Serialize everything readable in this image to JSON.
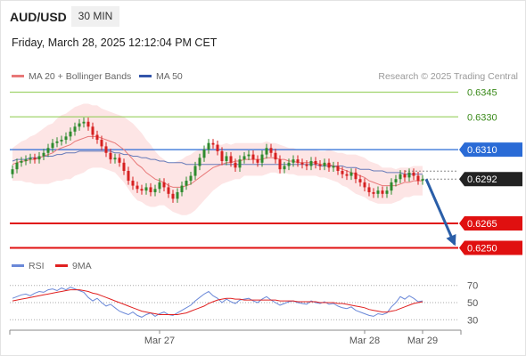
{
  "header": {
    "symbol": "AUD/USD",
    "timeframe": "30 MIN",
    "datetime": "Friday, March 28, 2025 12:12:04 PM CET"
  },
  "legend": {
    "ma20_label": "MA 20 + Bollinger Bands",
    "ma50_label": "MA 50",
    "credit": "Research © 2025 Trading Central",
    "rsi_label": "RSI",
    "rsi_ma_label": "9MA"
  },
  "colors": {
    "bullish": "#2e8b2e",
    "bearish": "#d62020",
    "ma20": "#e87878",
    "ma50": "#3355aa",
    "band": "#fde0e0",
    "resistance_green": "#8ac94a",
    "pivot_blue": "#2a6bd6",
    "support_red": "#e01010",
    "arrow": "#2a5ea8",
    "rsi": "#6a88d8",
    "rsi_ma": "#e02020"
  },
  "chart_data": [
    {
      "type": "candlestick",
      "title": "",
      "xlabel": "",
      "ylabel": "",
      "ylim": [
        0.62465,
        0.63535
      ],
      "x_ticks": [
        "Mar 27",
        "Mar 28",
        "Mar 29"
      ],
      "levels": [
        {
          "value": 0.6345,
          "label": "0.6345",
          "kind": "resistance"
        },
        {
          "value": 0.633,
          "label": "0.6330",
          "kind": "resistance"
        },
        {
          "value": 0.631,
          "label": "0.6310",
          "kind": "pivot"
        },
        {
          "value": 0.6292,
          "label": "0.6292",
          "kind": "current"
        },
        {
          "value": 0.6265,
          "label": "0.6265",
          "kind": "support"
        },
        {
          "value": 0.625,
          "label": "0.6250",
          "kind": "support"
        }
      ],
      "close": [
        0.6298,
        0.6302,
        0.6303,
        0.6304,
        0.6305,
        0.6304,
        0.6306,
        0.6308,
        0.6311,
        0.6314,
        0.6315,
        0.6316,
        0.6318,
        0.6321,
        0.6324,
        0.6326,
        0.6327,
        0.6324,
        0.6319,
        0.6316,
        0.6312,
        0.6308,
        0.6304,
        0.6305,
        0.6302,
        0.6297,
        0.6291,
        0.6288,
        0.6286,
        0.6285,
        0.6287,
        0.6284,
        0.6286,
        0.629,
        0.6287,
        0.6283,
        0.628,
        0.6284,
        0.6288,
        0.6291,
        0.6294,
        0.63,
        0.6305,
        0.631,
        0.6314,
        0.6313,
        0.6309,
        0.6303,
        0.6306,
        0.6302,
        0.6299,
        0.6304,
        0.6306,
        0.6307,
        0.6304,
        0.6302,
        0.6307,
        0.6311,
        0.6308,
        0.6304,
        0.6298,
        0.63,
        0.6302,
        0.6304,
        0.6302,
        0.6301,
        0.63,
        0.6303,
        0.6301,
        0.63,
        0.6302,
        0.6299,
        0.63,
        0.6297,
        0.6295,
        0.6294,
        0.6296,
        0.6292,
        0.629,
        0.6287,
        0.6284,
        0.6283,
        0.6285,
        0.6283,
        0.6285,
        0.629,
        0.6292,
        0.6295,
        0.6293,
        0.6296,
        0.6294,
        0.6291,
        0.6292
      ],
      "ma20": [
        0.6301,
        0.6302,
        0.6303,
        0.6303,
        0.6304,
        0.6304,
        0.6305,
        0.6306,
        0.6307,
        0.6308,
        0.631,
        0.6311,
        0.6312,
        0.6313,
        0.6315,
        0.6316,
        0.6317,
        0.6318,
        0.6318,
        0.6318,
        0.6317,
        0.6316,
        0.6315,
        0.6314,
        0.6312,
        0.631,
        0.6307,
        0.6304,
        0.6301,
        0.6299,
        0.6296,
        0.6294,
        0.6292,
        0.6291,
        0.629,
        0.6288,
        0.6287,
        0.6287,
        0.6287,
        0.6288,
        0.6289,
        0.6291,
        0.6293,
        0.6295,
        0.6297,
        0.6299,
        0.63,
        0.6301,
        0.6302,
        0.6302,
        0.6303,
        0.6303,
        0.6304,
        0.6304,
        0.6304,
        0.6304,
        0.6304,
        0.6305,
        0.6305,
        0.6305,
        0.6304,
        0.6304,
        0.6303,
        0.6303,
        0.6302,
        0.6302,
        0.6302,
        0.6302,
        0.6302,
        0.6301,
        0.6301,
        0.6301,
        0.63,
        0.6299,
        0.6298,
        0.6297,
        0.6296,
        0.6295,
        0.6294,
        0.6293,
        0.6291,
        0.629,
        0.6289,
        0.6288,
        0.6288,
        0.6288,
        0.6288,
        0.6289,
        0.629,
        0.629,
        0.6291,
        0.6291,
        0.6291
      ],
      "ma50": [
        0.6303,
        0.6304,
        0.6304,
        0.6304,
        0.6305,
        0.6305,
        0.6305,
        0.6306,
        0.6306,
        0.6306,
        0.6307,
        0.6307,
        0.6308,
        0.6308,
        0.6308,
        0.6309,
        0.6309,
        0.6309,
        0.6309,
        0.6309,
        0.6309,
        0.6309,
        0.6309,
        0.6308,
        0.6308,
        0.6307,
        0.6307,
        0.6306,
        0.6306,
        0.6305,
        0.6305,
        0.6304,
        0.6304,
        0.6303,
        0.6303,
        0.6302,
        0.6302,
        0.6302,
        0.6302,
        0.6301,
        0.6301,
        0.6301,
        0.6301,
        0.6301,
        0.6301,
        0.6301,
        0.6301,
        0.6301,
        0.6301,
        0.6301,
        0.6301,
        0.6301,
        0.6301,
        0.6301,
        0.6301,
        0.6301,
        0.6301,
        0.6301,
        0.6301,
        0.6301,
        0.6301,
        0.6301,
        0.6301,
        0.6301,
        0.6301,
        0.6301,
        0.6301,
        0.6301,
        0.6301,
        0.63,
        0.63,
        0.63,
        0.63,
        0.63,
        0.63,
        0.6299,
        0.6299,
        0.6299,
        0.6298,
        0.6298,
        0.6298,
        0.6297,
        0.6297,
        0.6297,
        0.6296,
        0.6296,
        0.6296,
        0.6296,
        0.6295,
        0.6295,
        0.6295,
        0.6295,
        0.6295
      ],
      "band_width": [
        0.001,
        0.0011,
        0.0012,
        0.0013,
        0.0014,
        0.0015,
        0.0016,
        0.0017,
        0.0018,
        0.0018,
        0.0019,
        0.002,
        0.002,
        0.0021,
        0.0021,
        0.0021,
        0.0021,
        0.002,
        0.0019,
        0.0019,
        0.0018,
        0.0018,
        0.0018,
        0.0018,
        0.0019,
        0.002,
        0.0021,
        0.0022,
        0.0022,
        0.0021,
        0.002,
        0.0019,
        0.0017,
        0.0015,
        0.0014,
        0.0014,
        0.0015,
        0.0016,
        0.0017,
        0.0018,
        0.0018,
        0.0018,
        0.0017,
        0.0016,
        0.0015,
        0.0014,
        0.0013,
        0.0012,
        0.0012,
        0.0011,
        0.0011,
        0.0011,
        0.001,
        0.001,
        0.001,
        0.001,
        0.001,
        0.001,
        0.0009,
        0.0009,
        0.0009,
        0.0008,
        0.0008,
        0.0008,
        0.0008,
        0.0008,
        0.0008,
        0.0008,
        0.0008,
        0.0008,
        0.0008,
        0.0009,
        0.0009,
        0.0009,
        0.001,
        0.001,
        0.0011,
        0.0012,
        0.0012,
        0.0012,
        0.0012,
        0.0012,
        0.0012,
        0.0011,
        0.0011,
        0.0011,
        0.001,
        0.001,
        0.0009,
        0.0009,
        0.0009,
        0.0009,
        0.0009
      ],
      "forecast_target": 0.625
    },
    {
      "type": "line",
      "title": "",
      "ylim": [
        23,
        77
      ],
      "y_ticks": [
        70,
        50,
        30
      ],
      "series": [
        {
          "name": "RSI",
          "values": [
            55,
            57,
            59,
            60,
            58,
            61,
            63,
            62,
            65,
            66,
            64,
            67,
            65,
            68,
            66,
            64,
            62,
            56,
            52,
            55,
            50,
            46,
            48,
            44,
            40,
            38,
            36,
            39,
            35,
            33,
            36,
            38,
            34,
            37,
            39,
            36,
            35,
            38,
            41,
            44,
            47,
            52,
            56,
            60,
            63,
            58,
            55,
            50,
            54,
            51,
            49,
            53,
            54,
            55,
            52,
            50,
            54,
            57,
            53,
            50,
            47,
            49,
            51,
            52,
            50,
            49,
            48,
            52,
            50,
            49,
            51,
            48,
            49,
            46,
            44,
            43,
            45,
            41,
            39,
            37,
            35,
            34,
            37,
            36,
            38,
            45,
            50,
            57,
            54,
            58,
            55,
            51,
            52
          ]
        },
        {
          "name": "9MA",
          "values": [
            52,
            53,
            54,
            55,
            56,
            57,
            58,
            59,
            60,
            61,
            62,
            63,
            64,
            65,
            65,
            65,
            64,
            63,
            61,
            60,
            58,
            56,
            54,
            52,
            50,
            48,
            46,
            44,
            42,
            40,
            39,
            38,
            37,
            36,
            36,
            36,
            36,
            36,
            37,
            38,
            40,
            42,
            44,
            46,
            49,
            51,
            53,
            54,
            55,
            55,
            54,
            54,
            53,
            53,
            53,
            53,
            53,
            53,
            53,
            53,
            52,
            52,
            52,
            52,
            51,
            51,
            51,
            51,
            51,
            50,
            50,
            50,
            50,
            49,
            49,
            48,
            47,
            46,
            45,
            44,
            42,
            41,
            40,
            39,
            39,
            40,
            41,
            43,
            45,
            47,
            49,
            50,
            51
          ]
        }
      ]
    }
  ]
}
